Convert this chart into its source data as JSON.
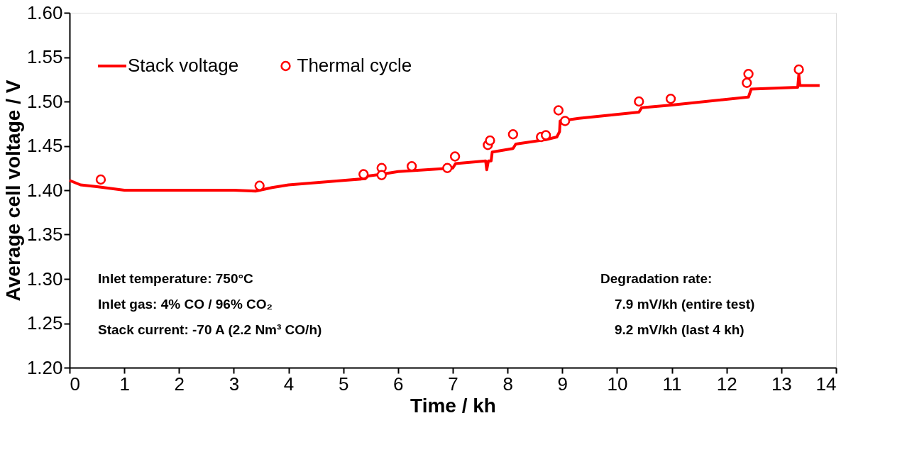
{
  "chart_data": {
    "type": "line",
    "xlabel": "Time / kh",
    "ylabel": "Average cell voltage / V",
    "xlim": [
      0,
      14
    ],
    "xticks": [
      0,
      1,
      2,
      3,
      4,
      5,
      6,
      7,
      8,
      9,
      10,
      11,
      12,
      13,
      14
    ],
    "ylim": [
      1.2,
      1.6
    ],
    "yticks": [
      {
        "value": 1.2,
        "label": "1.20"
      },
      {
        "value": 1.25,
        "label": "1.25"
      },
      {
        "value": 1.3,
        "label": "1.30"
      },
      {
        "value": 1.35,
        "label": "1.35"
      },
      {
        "value": 1.4,
        "label": "1.40"
      },
      {
        "value": 1.45,
        "label": "1.45"
      },
      {
        "value": 1.5,
        "label": "1.50"
      },
      {
        "value": 1.55,
        "label": "1.55"
      },
      {
        "value": 1.6,
        "label": "1.60"
      }
    ],
    "grid": false,
    "legend": "top left",
    "series": [
      {
        "name": "Stack voltage",
        "color": "#ff0000",
        "marker": "none",
        "line_style": "solid",
        "x": [
          0,
          0.2,
          0.5,
          1,
          2,
          3,
          3.4,
          3.7,
          4,
          5,
          5.4,
          5.45,
          5.7,
          6,
          7,
          7.05,
          7.6,
          7.62,
          7.65,
          7.7,
          7.72,
          8.1,
          8.15,
          8.7,
          8.9,
          8.95,
          8.96,
          9.3,
          10.4,
          10.45,
          11,
          12.4,
          12.45,
          13.3,
          13.32,
          13.34,
          13.7
        ],
        "values": [
          1.411,
          1.406,
          1.404,
          1.4,
          1.4,
          1.4,
          1.399,
          1.403,
          1.406,
          1.411,
          1.413,
          1.416,
          1.418,
          1.421,
          1.425,
          1.43,
          1.433,
          1.423,
          1.433,
          1.433,
          1.443,
          1.447,
          1.452,
          1.457,
          1.46,
          1.466,
          1.478,
          1.481,
          1.488,
          1.493,
          1.496,
          1.505,
          1.514,
          1.516,
          1.53,
          1.518,
          1.518
        ]
      },
      {
        "name": "Thermal cycle",
        "type": "scatter",
        "color": "#ff0000",
        "marker": "circle",
        "x": [
          0.57,
          3.47,
          5.37,
          5.7,
          5.7,
          6.25,
          6.9,
          7.04,
          7.64,
          7.68,
          8.1,
          8.61,
          8.7,
          8.93,
          9.05,
          10.4,
          10.98,
          12.37,
          12.4,
          13.32
        ],
        "values": [
          1.412,
          1.405,
          1.418,
          1.425,
          1.417,
          1.427,
          1.425,
          1.438,
          1.451,
          1.456,
          1.463,
          1.46,
          1.462,
          1.49,
          1.478,
          1.5,
          1.503,
          1.521,
          1.531,
          1.536
        ]
      }
    ],
    "annotations": [
      "Inlet temperature: 750°C",
      "Inlet gas: 4% CO / 96% CO₂",
      "Stack current: -70 A (2.2 Nm³ CO/h)",
      "Degradation rate:",
      "7.9 mV/kh (entire test)",
      "9.2 mV/kh (last 4 kh)"
    ]
  }
}
